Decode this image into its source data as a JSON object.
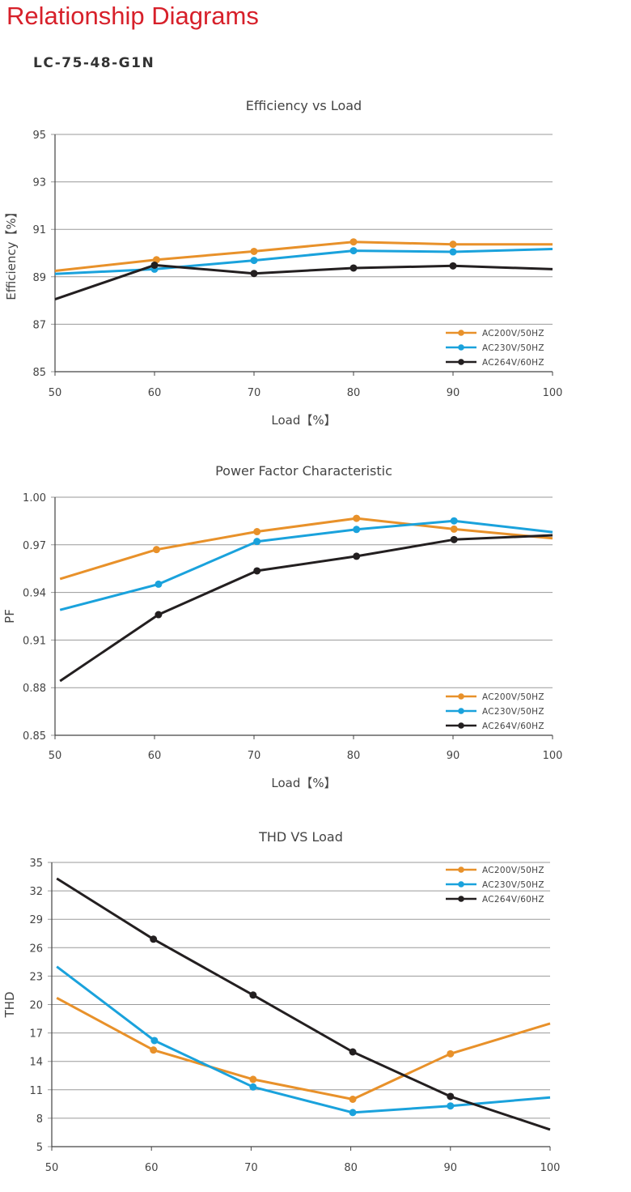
{
  "header": {
    "title": "Relationship Diagrams",
    "model": "LC-75-48-G1N"
  },
  "chart_data": [
    {
      "type": "line",
      "title": "Efficiency vs Load",
      "xlabel": "Load【%】",
      "ylabel": "Efficiency【%】",
      "x": [
        50,
        60,
        70,
        80,
        90,
        100
      ],
      "xticks": [
        "50",
        "60",
        "70",
        "80",
        "90",
        "100"
      ],
      "ylim": [
        85,
        95
      ],
      "yticks": [
        "85",
        "87",
        "89",
        "91",
        "93",
        "95"
      ],
      "grid": true,
      "legend": "bottom-right",
      "series": [
        {
          "name": "AC200V/50HZ",
          "color": "#e8912a",
          "x": [
            50,
            60.2,
            70,
            80,
            90,
            100
          ],
          "values": [
            89.25,
            89.72,
            90.07,
            90.47,
            90.37,
            90.37
          ],
          "markers": [
            60.2,
            70,
            80,
            90
          ]
        },
        {
          "name": "AC230V/50HZ",
          "color": "#1aa2dc",
          "x": [
            50,
            60,
            70,
            80,
            90,
            100
          ],
          "values": [
            89.12,
            89.32,
            89.69,
            90.1,
            90.05,
            90.17
          ],
          "markers": [
            60,
            70,
            80,
            90
          ]
        },
        {
          "name": "AC264V/60HZ",
          "color": "#231f20",
          "x": [
            50,
            60,
            70,
            80,
            90,
            100
          ],
          "values": [
            88.05,
            89.49,
            89.14,
            89.37,
            89.46,
            89.32
          ],
          "markers": [
            60,
            70,
            80,
            90
          ]
        }
      ]
    },
    {
      "type": "line",
      "title": "Power Factor Characteristic",
      "xlabel": "Load【%】",
      "ylabel": "PF",
      "x": [
        50,
        60,
        70,
        80,
        90,
        100
      ],
      "xticks": [
        "50",
        "60",
        "70",
        "80",
        "90",
        "100"
      ],
      "ylim": [
        0.85,
        1.0
      ],
      "yticks": [
        "0.85",
        "0.88",
        "0.91",
        "0.94",
        "0.97",
        "1.00"
      ],
      "grid": true,
      "legend": "bottom-right",
      "series": [
        {
          "name": "AC200V/50HZ",
          "color": "#e8912a",
          "x": [
            50.5,
            60.2,
            70.3,
            80.3,
            90.1,
            100
          ],
          "values": [
            0.9485,
            0.967,
            0.9783,
            0.9867,
            0.9799,
            0.9741
          ],
          "markers": [
            60.2,
            70.3,
            80.3,
            90.1
          ]
        },
        {
          "name": "AC230V/50HZ",
          "color": "#1aa2dc",
          "x": [
            50.5,
            60.4,
            70.3,
            80.3,
            90.1,
            100
          ],
          "values": [
            0.929,
            0.9452,
            0.9721,
            0.9797,
            0.9851,
            0.978
          ],
          "markers": [
            60.4,
            70.3,
            80.3,
            90.1
          ]
        },
        {
          "name": "AC264V/60HZ",
          "color": "#231f20",
          "x": [
            50.5,
            60.4,
            70.3,
            80.3,
            90.1,
            100
          ],
          "values": [
            0.8842,
            0.926,
            0.9536,
            0.9628,
            0.9733,
            0.976
          ],
          "markers": [
            60.4,
            70.3,
            80.3,
            90.1
          ]
        }
      ]
    },
    {
      "type": "line",
      "title": "THD VS Load",
      "xlabel": "",
      "ylabel": "THD",
      "x": [
        50,
        60,
        70,
        80,
        90,
        100
      ],
      "xticks": [
        "50",
        "60",
        "70",
        "80",
        "90",
        "100"
      ],
      "ylim": [
        5,
        35
      ],
      "yticks": [
        "5",
        "8",
        "11",
        "14",
        "17",
        "20",
        "23",
        "26",
        "29",
        "32",
        "35"
      ],
      "grid": true,
      "legend": "top-right",
      "series": [
        {
          "name": "AC200V/50HZ",
          "color": "#e8912a",
          "x": [
            50.5,
            60.2,
            70.2,
            80.2,
            90,
            100
          ],
          "values": [
            20.7,
            15.2,
            12.1,
            10.0,
            14.8,
            18.0
          ],
          "markers": [
            60.2,
            70.2,
            80.2,
            90
          ]
        },
        {
          "name": "AC230V/50HZ",
          "color": "#1aa2dc",
          "x": [
            50.5,
            60.3,
            70.2,
            80.2,
            90,
            100
          ],
          "values": [
            24.0,
            16.2,
            11.3,
            8.6,
            9.3,
            10.2
          ],
          "markers": [
            60.3,
            70.2,
            80.2,
            90
          ]
        },
        {
          "name": "AC264V/60HZ",
          "color": "#231f20",
          "x": [
            50.5,
            60.2,
            70.2,
            80.2,
            90,
            100
          ],
          "values": [
            33.3,
            26.9,
            21.0,
            15.0,
            10.3,
            6.8
          ],
          "markers": [
            60.2,
            70.2,
            80.2,
            90
          ]
        }
      ]
    }
  ]
}
